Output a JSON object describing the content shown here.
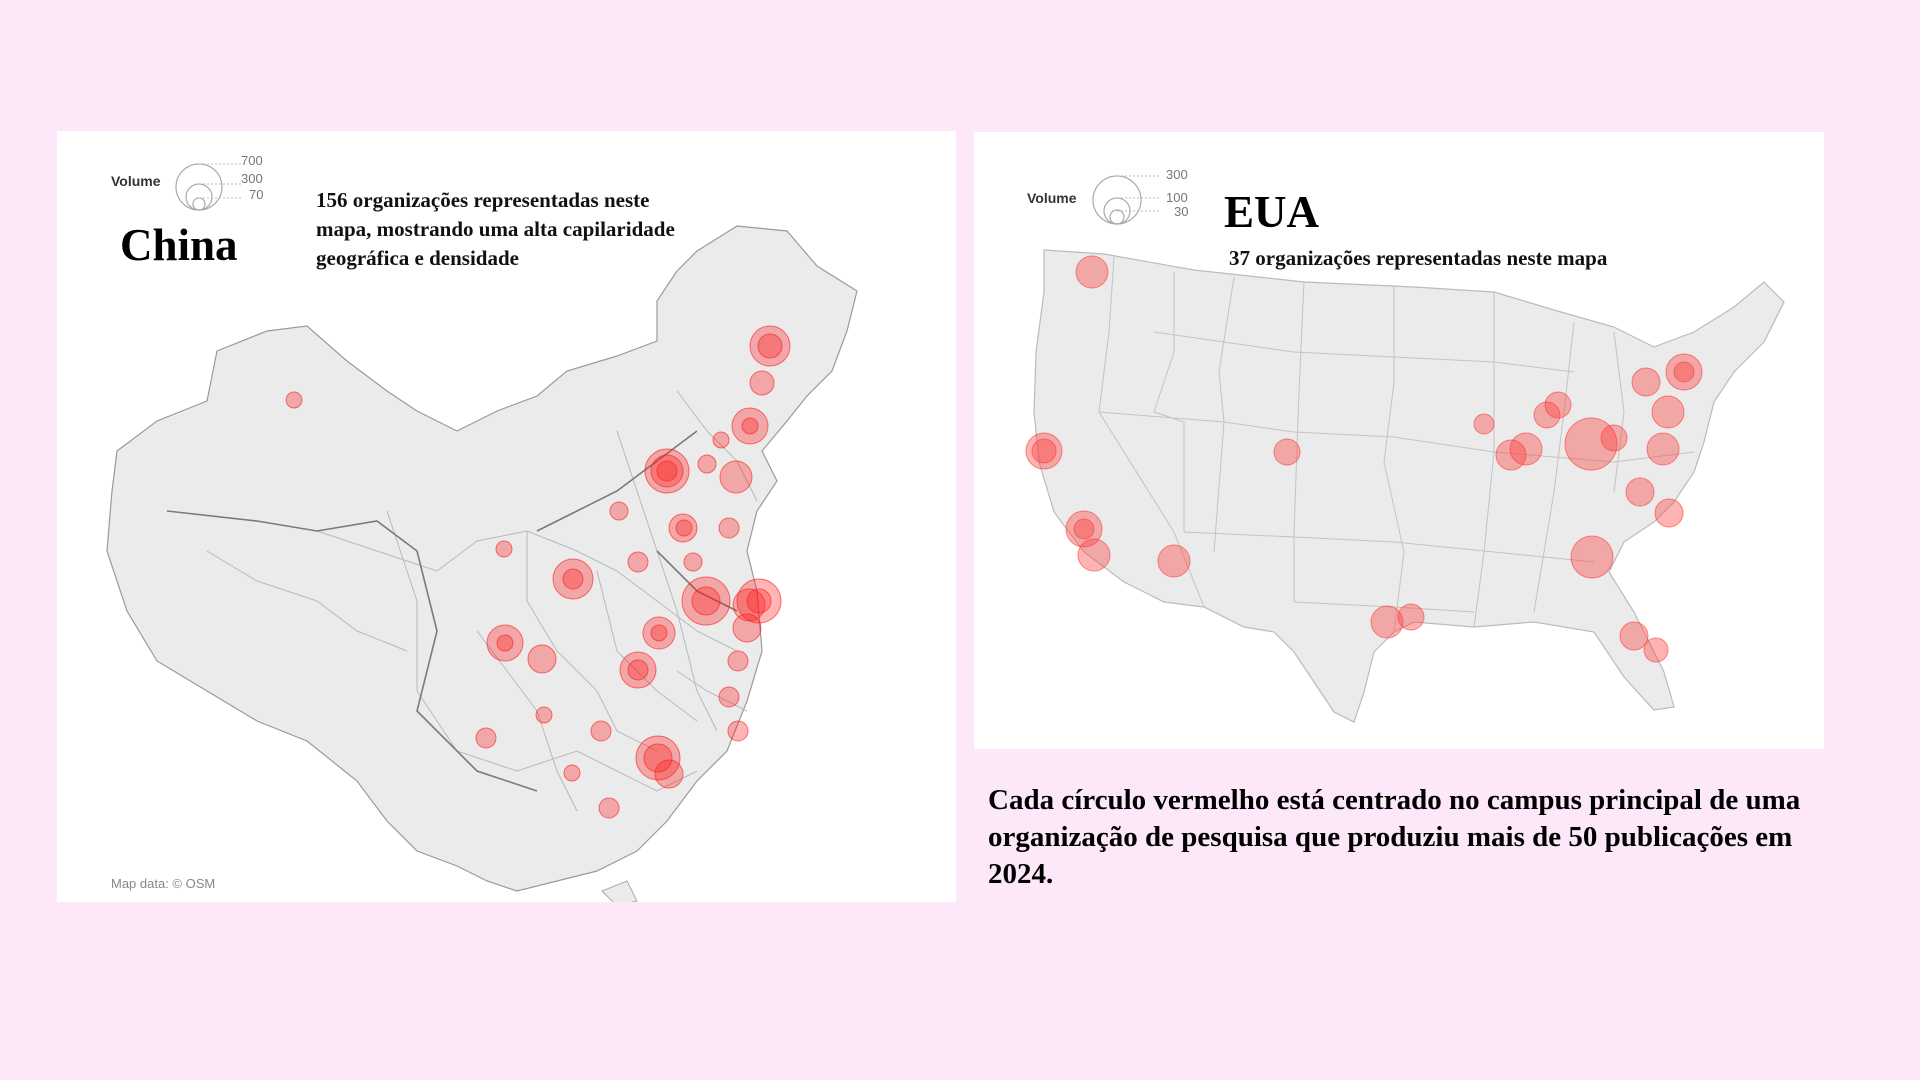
{
  "china_map": {
    "title": "China",
    "subtitle": "156 organizações representadas neste mapa, mostrando uma alta capilaridade geográfica e densidade",
    "legend": {
      "label": "Volume",
      "values": [
        "700",
        "300",
        "70"
      ]
    },
    "credit": "Map data: © OSM",
    "marker_color": "#ff1a1a",
    "land_color": "#ebebeb"
  },
  "usa_map": {
    "title": "EUA",
    "subtitle": "37 organizações representadas neste mapa",
    "legend": {
      "label": "Volume",
      "values": [
        "300",
        "100",
        "30"
      ]
    },
    "marker_color": "#ff3b3b",
    "land_color": "#ebebeb"
  },
  "caption": "Cada círculo vermelho está centrado no campus principal de uma organização de pesquisa que produziu mais de 50 publicações em 2024."
}
